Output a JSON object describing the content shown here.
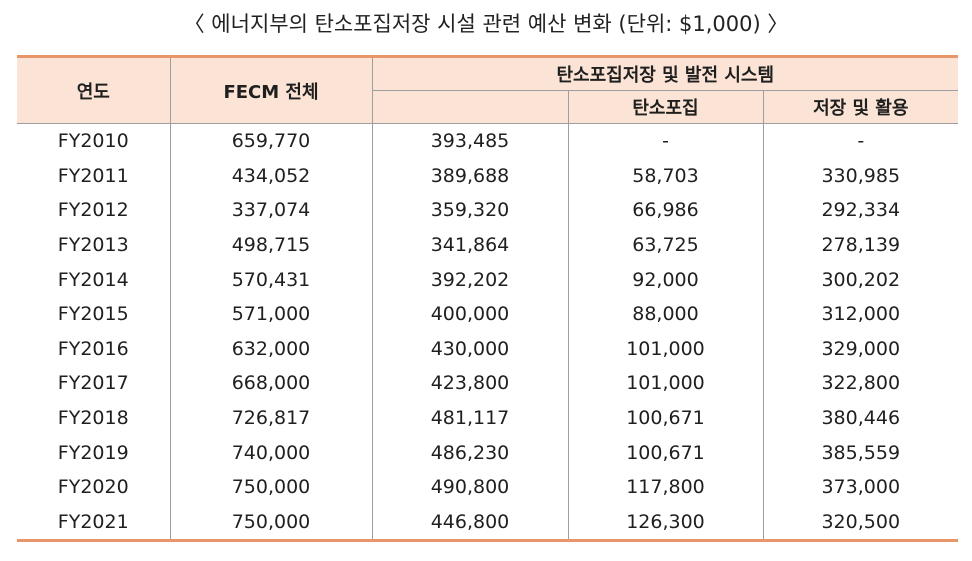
{
  "caption": "〈 에너지부의 탄소포집저장 시설 관련 예산 변화 (단위: $1,000) 〉",
  "table": {
    "headers": {
      "year": "연도",
      "fecm_total": "FECM 전체",
      "ccs_group": "탄소포집저장 및 발전 시스템",
      "capture": "탄소포집",
      "storage": "저장 및 활용"
    },
    "rows": [
      {
        "year": "FY2010",
        "fecm_total": "659,770",
        "ccs_total": "393,485",
        "capture": "-",
        "storage": "-"
      },
      {
        "year": "FY2011",
        "fecm_total": "434,052",
        "ccs_total": "389,688",
        "capture": "58,703",
        "storage": "330,985"
      },
      {
        "year": "FY2012",
        "fecm_total": "337,074",
        "ccs_total": "359,320",
        "capture": "66,986",
        "storage": "292,334"
      },
      {
        "year": "FY2013",
        "fecm_total": "498,715",
        "ccs_total": "341,864",
        "capture": "63,725",
        "storage": "278,139"
      },
      {
        "year": "FY2014",
        "fecm_total": "570,431",
        "ccs_total": "392,202",
        "capture": "92,000",
        "storage": "300,202"
      },
      {
        "year": "FY2015",
        "fecm_total": "571,000",
        "ccs_total": "400,000",
        "capture": "88,000",
        "storage": "312,000"
      },
      {
        "year": "FY2016",
        "fecm_total": "632,000",
        "ccs_total": "430,000",
        "capture": "101,000",
        "storage": "329,000"
      },
      {
        "year": "FY2017",
        "fecm_total": "668,000",
        "ccs_total": "423,800",
        "capture": "101,000",
        "storage": "322,800"
      },
      {
        "year": "FY2018",
        "fecm_total": "726,817",
        "ccs_total": "481,117",
        "capture": "100,671",
        "storage": "380,446"
      },
      {
        "year": "FY2019",
        "fecm_total": "740,000",
        "ccs_total": "486,230",
        "capture": "100,671",
        "storage": "385,559"
      },
      {
        "year": "FY2020",
        "fecm_total": "750,000",
        "ccs_total": "490,800",
        "capture": "117,800",
        "storage": "373,000"
      },
      {
        "year": "FY2021",
        "fecm_total": "750,000",
        "ccs_total": "446,800",
        "capture": "126,300",
        "storage": "320,500"
      }
    ]
  },
  "colors": {
    "header_bg": "#fbe4d5",
    "accent_rule": "#e8956a",
    "grid_line": "#9e9e9e"
  }
}
